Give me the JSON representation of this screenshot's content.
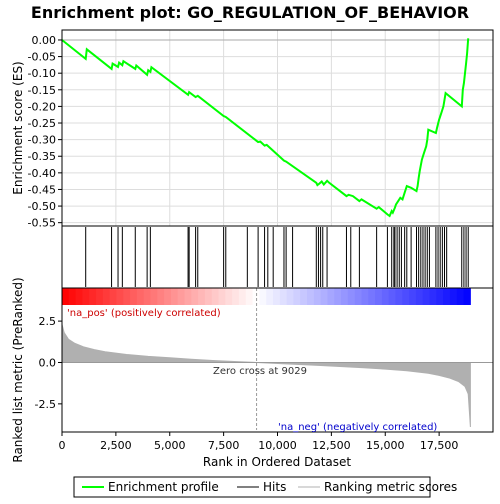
{
  "chart_data": {
    "type": "line",
    "title": "Enrichment plot: GO_REGULATION_OF_BEHAVIOR",
    "xlabel": "Rank in Ordered Dataset",
    "xlim": [
      0,
      20000
    ],
    "x_ticks": [
      0,
      2500,
      5000,
      7500,
      10000,
      12500,
      15000,
      17500
    ],
    "x_tick_labels": [
      "0",
      "2,500",
      "5,000",
      "7,500",
      "10,000",
      "12,500",
      "15,000",
      "17,500"
    ],
    "es_panel": {
      "ylabel": "Enrichment score (ES)",
      "ylim": [
        -0.56,
        0.03
      ],
      "y_ticks": [
        0.0,
        -0.05,
        -0.1,
        -0.15,
        -0.2,
        -0.25,
        -0.3,
        -0.35,
        -0.4,
        -0.45,
        -0.5,
        -0.55
      ],
      "y_tick_labels": [
        "0.00",
        "-0.05",
        "-0.10",
        "-0.15",
        "-0.20",
        "-0.25",
        "-0.30",
        "-0.35",
        "-0.40",
        "-0.45",
        "-0.50",
        "-0.55"
      ],
      "series": [
        {
          "name": "Enrichment profile",
          "color": "#00ff00",
          "x": [
            0,
            1100,
            1150,
            2300,
            2350,
            2600,
            2650,
            2800,
            2850,
            3400,
            3450,
            3950,
            4000,
            4100,
            4150,
            5850,
            5900,
            6200,
            6300,
            7500,
            7600,
            9100,
            9200,
            9400,
            9500,
            10300,
            10400,
            11800,
            11850,
            11950,
            12050,
            12150,
            12300,
            12400,
            13200,
            13300,
            13500,
            13800,
            13900,
            14600,
            14700,
            15100,
            15200,
            15300,
            15350,
            15450,
            15500,
            15600,
            15700,
            15800,
            15900,
            16000,
            16200,
            16450,
            16500,
            16550,
            16600,
            16700,
            16800,
            16900,
            16950,
            17000,
            17350,
            17400,
            17500,
            17600,
            17700,
            17750,
            17800,
            18550,
            18600,
            18650,
            18700,
            18750,
            18800,
            18850
          ],
          "y": [
            0.0,
            -0.057,
            -0.028,
            -0.087,
            -0.071,
            -0.081,
            -0.068,
            -0.076,
            -0.064,
            -0.087,
            -0.077,
            -0.105,
            -0.091,
            -0.096,
            -0.082,
            -0.165,
            -0.157,
            -0.172,
            -0.168,
            -0.229,
            -0.232,
            -0.307,
            -0.306,
            -0.318,
            -0.316,
            -0.363,
            -0.366,
            -0.43,
            -0.437,
            -0.432,
            -0.426,
            -0.435,
            -0.424,
            -0.43,
            -0.47,
            -0.466,
            -0.47,
            -0.485,
            -0.48,
            -0.508,
            -0.503,
            -0.525,
            -0.53,
            -0.515,
            -0.52,
            -0.505,
            -0.495,
            -0.485,
            -0.475,
            -0.48,
            -0.46,
            -0.44,
            -0.445,
            -0.455,
            -0.44,
            -0.415,
            -0.395,
            -0.36,
            -0.34,
            -0.32,
            -0.3,
            -0.27,
            -0.28,
            -0.265,
            -0.24,
            -0.22,
            -0.2,
            -0.18,
            -0.16,
            -0.2,
            -0.15,
            -0.13,
            -0.1,
            -0.07,
            -0.04,
            0.005
          ]
        }
      ]
    },
    "hits": {
      "name": "Hits",
      "positions": [
        1100,
        2300,
        2600,
        2800,
        3400,
        3950,
        4100,
        5850,
        5900,
        6200,
        6300,
        7500,
        7600,
        8600,
        9100,
        9400,
        9550,
        9800,
        10300,
        10400,
        10700,
        11800,
        11900,
        12000,
        12100,
        12300,
        13200,
        13400,
        13800,
        14600,
        15100,
        15300,
        15400,
        15450,
        15550,
        15650,
        15750,
        15900,
        16000,
        16200,
        16450,
        16550,
        16650,
        16750,
        16850,
        16950,
        17050,
        17350,
        17450,
        17550,
        17650,
        17750,
        17850,
        18550,
        18650,
        18750,
        18850
      ]
    },
    "metric_panel": {
      "ylabel": "Ranked list metric (PreRanked)",
      "ylim": [
        -4.2,
        4.5
      ],
      "y_ticks": [
        2.5,
        0.0,
        -2.5
      ],
      "y_tick_labels": [
        "2.5",
        "0.0",
        "-2.5"
      ],
      "series_name": "Ranking metric scores",
      "color": "#b0b0b0",
      "x": [
        0,
        100,
        300,
        600,
        1000,
        1500,
        2000,
        3000,
        4000,
        5000,
        6000,
        7000,
        8000,
        9029,
        10000,
        11000,
        12000,
        13000,
        14000,
        15000,
        16000,
        17000,
        17500,
        18000,
        18400,
        18700,
        18850,
        18950
      ],
      "y": [
        2.3,
        1.8,
        1.4,
        1.15,
        0.95,
        0.78,
        0.65,
        0.48,
        0.37,
        0.28,
        0.2,
        0.12,
        0.06,
        0.0,
        -0.06,
        -0.12,
        -0.18,
        -0.25,
        -0.32,
        -0.4,
        -0.5,
        -0.65,
        -0.78,
        -0.95,
        -1.15,
        -1.45,
        -1.9,
        -3.9
      ]
    },
    "annotations": [
      "'na_pos' (positively correlated)",
      "Zero cross at 9029",
      "'na_neg' (negatively correlated)"
    ],
    "zero_cross": 9029,
    "n_genes": 18950,
    "legend": {
      "placement": "bottom",
      "entries": [
        {
          "label": "Enrichment profile",
          "color": "#00ff00"
        },
        {
          "label": "Hits",
          "color": "#000000"
        },
        {
          "label": "Ranking metric scores",
          "color": "#b0b0b0"
        }
      ]
    },
    "colors": {
      "es_line": "#00ff00",
      "hit": "#000000",
      "metric": "#b0b0b0",
      "pos_text": "#cc0000",
      "neg_text": "#0000cc",
      "zero_line": "#999999",
      "grid": "#dddddd"
    }
  }
}
